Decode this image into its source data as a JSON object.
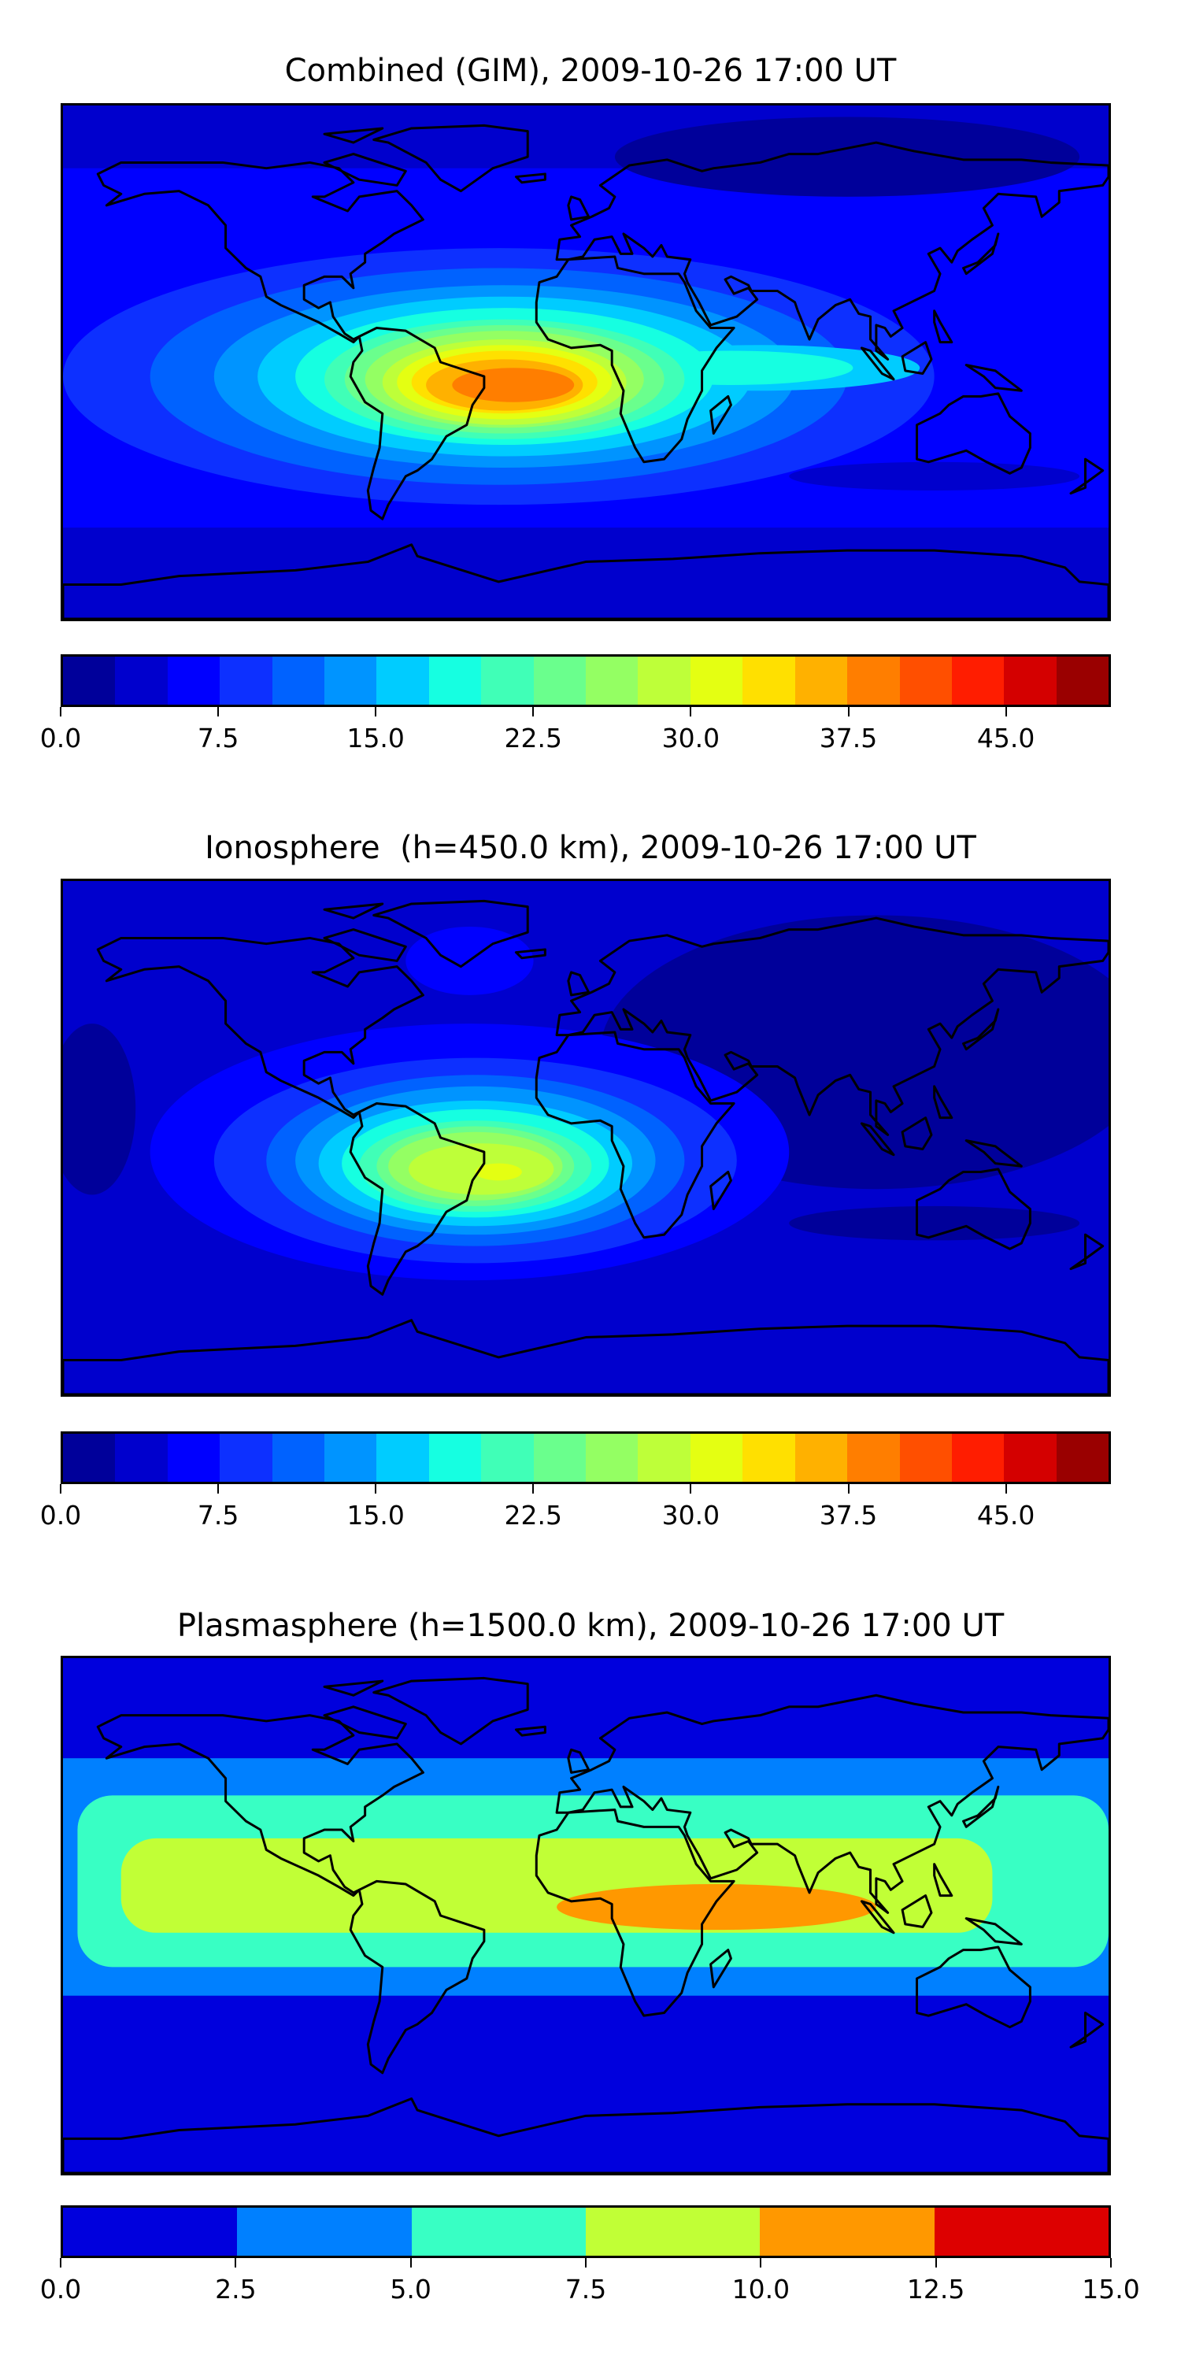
{
  "panels": [
    {
      "title": "Combined (GIM), 2009-10-26 17:00 UT",
      "colorbar": {
        "ticks": [
          "0.0",
          "7.5",
          "15.0",
          "22.5",
          "30.0",
          "37.5",
          "45.0"
        ],
        "tick_values": [
          0,
          7.5,
          15,
          22.5,
          30,
          37.5,
          45
        ],
        "range": [
          0,
          50
        ],
        "colors": [
          "#00009a",
          "#0000cd",
          "#0000ff",
          "#0d30ff",
          "#0062ff",
          "#0094ff",
          "#00ccff",
          "#16ffe1",
          "#40ffb7",
          "#6aff8d",
          "#94ff63",
          "#beff39",
          "#e4ff12",
          "#ffe000",
          "#ffb100",
          "#ff7e00",
          "#ff4f00",
          "#ff1d00",
          "#d40000",
          "#9a0000"
        ]
      }
    },
    {
      "title": "Ionosphere  (h=450.0 km), 2009-10-26 17:00 UT",
      "colorbar": {
        "ticks": [
          "0.0",
          "7.5",
          "15.0",
          "22.5",
          "30.0",
          "37.5",
          "45.0"
        ],
        "tick_values": [
          0,
          7.5,
          15,
          22.5,
          30,
          37.5,
          45
        ],
        "range": [
          0,
          50
        ],
        "colors": [
          "#00009a",
          "#0000cd",
          "#0000ff",
          "#0d30ff",
          "#0062ff",
          "#0094ff",
          "#00ccff",
          "#16ffe1",
          "#40ffb7",
          "#6aff8d",
          "#94ff63",
          "#beff39",
          "#e4ff12",
          "#ffe000",
          "#ffb100",
          "#ff7e00",
          "#ff4f00",
          "#ff1d00",
          "#d40000",
          "#9a0000"
        ]
      }
    },
    {
      "title": "Plasmasphere (h=1500.0 km), 2009-10-26 17:00 UT",
      "colorbar": {
        "ticks": [
          "0.0",
          "2.5",
          "5.0",
          "7.5",
          "10.0",
          "12.5",
          "15.0"
        ],
        "tick_values": [
          0,
          2.5,
          5,
          7.5,
          10,
          12.5,
          15
        ],
        "range": [
          0,
          15
        ],
        "colors": [
          "#0000dd",
          "#0080ff",
          "#38ffc4",
          "#c1ff36",
          "#ff9800",
          "#dd0000"
        ]
      }
    }
  ],
  "chart_data": [
    {
      "type": "heatmap",
      "title": "Combined (GIM), 2009-10-26 17:00 UT",
      "projection": "equirectangular",
      "lon_range": [
        -180,
        180
      ],
      "lat_range": [
        -90,
        90
      ],
      "levels_range": [
        0,
        50
      ],
      "level_step": 2.5,
      "max_region": "South America / South Atlantic, ~37.5-40",
      "min_region": "Siberia / high latitudes, 0-2.5"
    },
    {
      "type": "heatmap",
      "title": "Ionosphere  (h=450.0 km), 2009-10-26 17:00 UT",
      "projection": "equirectangular",
      "lon_range": [
        -180,
        180
      ],
      "lat_range": [
        -90,
        90
      ],
      "levels_range": [
        0,
        50
      ],
      "level_step": 2.5,
      "max_region": "South America, ~30-32.5",
      "min_region": "Asia / Indian Ocean, 0-2.5"
    },
    {
      "type": "heatmap",
      "title": "Plasmasphere (h=1500.0 km), 2009-10-26 17:00 UT",
      "projection": "equirectangular",
      "lon_range": [
        -180,
        180
      ],
      "lat_range": [
        -90,
        90
      ],
      "levels_range": [
        0,
        15
      ],
      "level_step": 2.5,
      "max_region": "Africa / Indian Ocean equatorial band, 10-12.5",
      "min_region": "High latitudes, 0-2.5"
    }
  ]
}
